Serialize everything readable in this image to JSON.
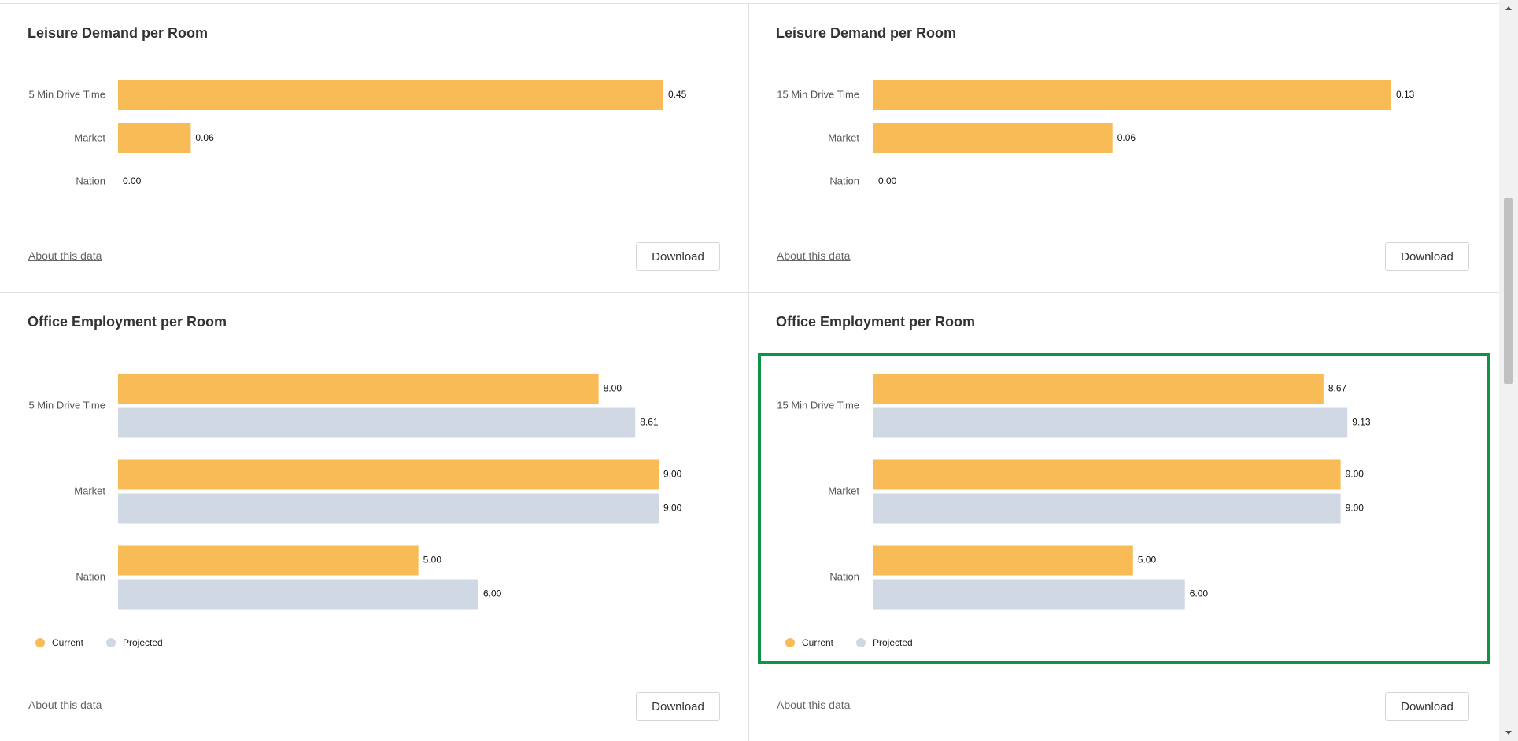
{
  "panels": [
    {
      "title": "Leisure Demand per Room",
      "about": "About this data",
      "download": "Download"
    },
    {
      "title": "Leisure Demand per Room",
      "about": "About this data",
      "download": "Download"
    },
    {
      "title": "Office Employment per Room",
      "about": "About this data",
      "download": "Download"
    },
    {
      "title": "Office Employment per Room",
      "about": "About this data",
      "download": "Download"
    }
  ],
  "colors": {
    "current": "#f8bb55",
    "projected": "#cfd8e3",
    "highlight": "#0e9447"
  },
  "chart_data": [
    {
      "type": "bar",
      "categories": [
        "5 Min Drive Time",
        "Market",
        "Nation"
      ],
      "series": [
        {
          "values": [
            0.45,
            0.06,
            0.0
          ]
        }
      ],
      "value_labels": [
        "0.45",
        "0.06",
        "0.00"
      ],
      "xlim": [
        0,
        0.45
      ]
    },
    {
      "type": "bar",
      "categories": [
        "15 Min Drive Time",
        "Market",
        "Nation"
      ],
      "series": [
        {
          "values": [
            0.13,
            0.06,
            0.0
          ]
        }
      ],
      "value_labels": [
        "0.13",
        "0.06",
        "0.00"
      ],
      "xlim": [
        0,
        0.13
      ]
    },
    {
      "type": "bar",
      "categories": [
        "5 Min Drive Time",
        "Market",
        "Nation"
      ],
      "series": [
        {
          "name": "Current",
          "values": [
            8.0,
            9.0,
            5.0
          ],
          "labels": [
            "8.00",
            "9.00",
            "5.00"
          ]
        },
        {
          "name": "Projected",
          "values": [
            8.61,
            9.0,
            6.0
          ],
          "labels": [
            "8.61",
            "9.00",
            "6.00"
          ]
        }
      ],
      "xlim": [
        0,
        9.0
      ],
      "legend": "bottom-left"
    },
    {
      "type": "bar",
      "categories": [
        "15 Min Drive Time",
        "Market",
        "Nation"
      ],
      "series": [
        {
          "name": "Current",
          "values": [
            8.67,
            9.0,
            5.0
          ],
          "labels": [
            "8.67",
            "9.00",
            "5.00"
          ]
        },
        {
          "name": "Projected",
          "values": [
            9.13,
            9.0,
            6.0
          ],
          "labels": [
            "9.13",
            "9.00",
            "6.00"
          ]
        }
      ],
      "xlim": [
        0,
        9.4
      ],
      "legend": "bottom-left"
    }
  ]
}
